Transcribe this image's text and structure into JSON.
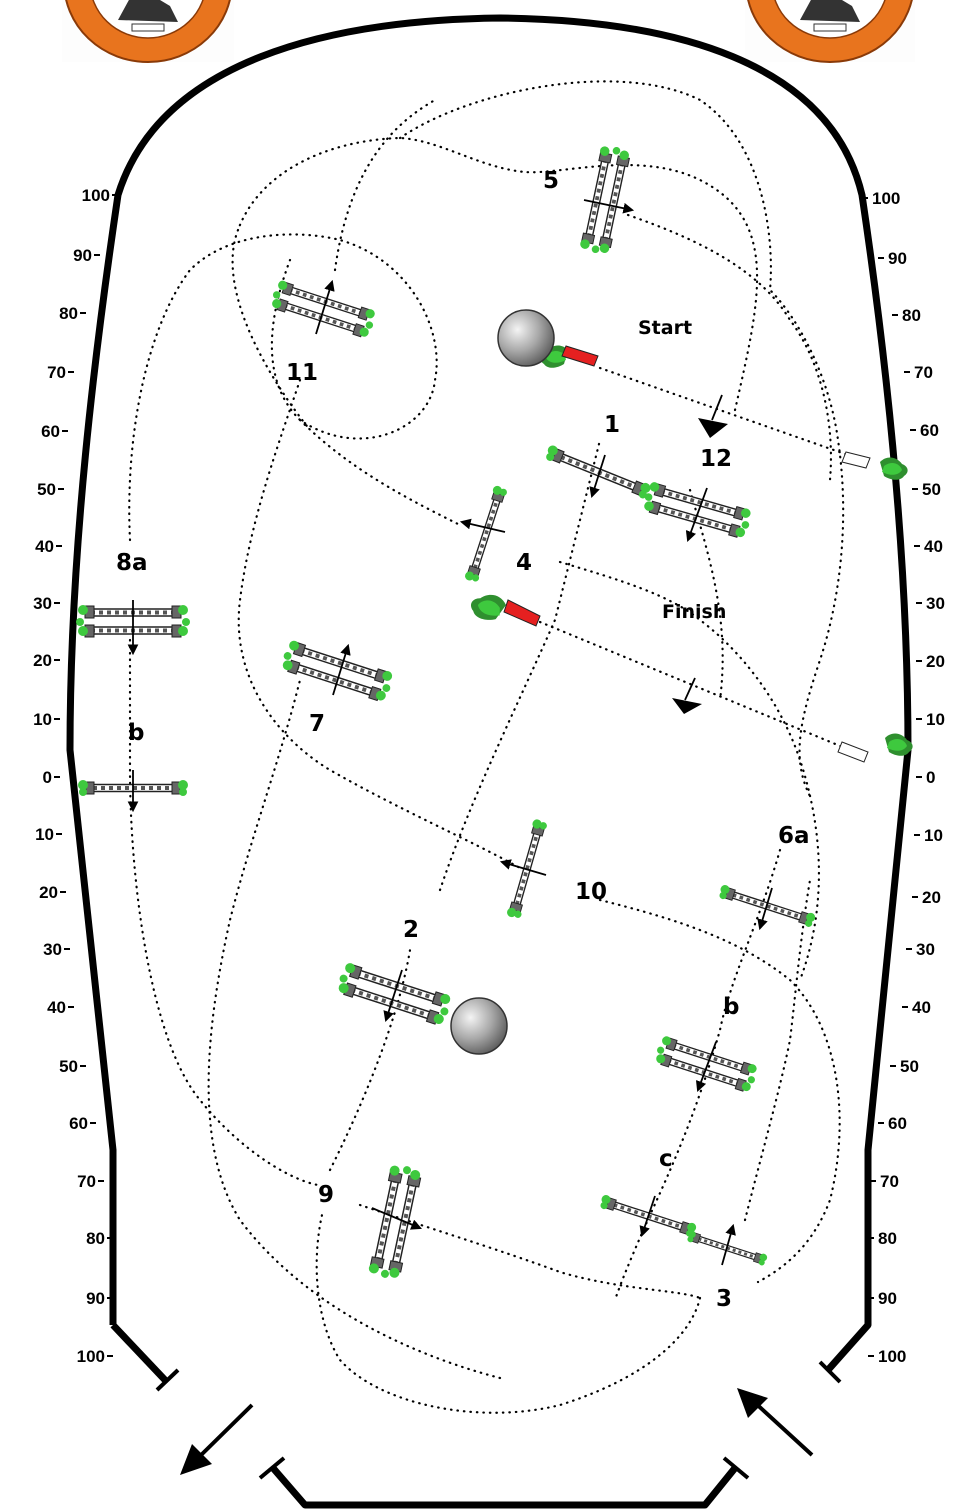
{
  "colors": {
    "ground": "#ffffff",
    "wall": "#000000",
    "foliage": "#3ec93e",
    "foliage_dark": "#2f8f2f",
    "flag_red": "#e52020",
    "logo_orange": "#e8741e",
    "rail_stripe": "#444444"
  },
  "scale_left": [
    "100",
    "90",
    "80",
    "70",
    "60",
    "50",
    "40",
    "30",
    "20",
    "10",
    "0",
    "10",
    "20",
    "30",
    "40",
    "50",
    "60",
    "70",
    "80",
    "90",
    "100"
  ],
  "scale_right": [
    "100",
    "90",
    "80",
    "70",
    "60",
    "50",
    "40",
    "30",
    "20",
    "10",
    "0",
    "10",
    "20",
    "30",
    "40",
    "50",
    "60",
    "70",
    "80",
    "90",
    "100"
  ],
  "markers": {
    "start": "Start",
    "finish": "Finish"
  },
  "fence_labels": {
    "f1": "1",
    "f2": "2",
    "f3": "3",
    "f4": "4",
    "f5": "5",
    "f6a": "6a",
    "f6b": "b",
    "f6c": "c",
    "f7": "7",
    "f8a": "8a",
    "f8b": "b",
    "f9": "9",
    "f10": "10",
    "f11": "11",
    "f12": "12"
  },
  "icons": [
    "logo-icon",
    "decorative-ball-icon",
    "in-gate-arrow-icon",
    "out-gate-arrow-icon",
    "start-flag-icon",
    "finish-flag-icon"
  ]
}
